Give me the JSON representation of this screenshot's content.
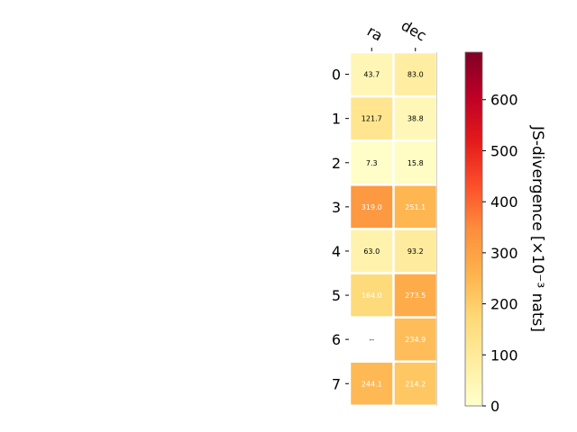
{
  "chart_data": {
    "type": "heatmap",
    "columns": [
      "ra",
      "dec"
    ],
    "rows": [
      "0",
      "1",
      "2",
      "3",
      "4",
      "5",
      "6",
      "7"
    ],
    "values": [
      [
        43.7,
        83.0
      ],
      [
        121.7,
        38.8
      ],
      [
        7.3,
        15.8
      ],
      [
        319.0,
        251.1
      ],
      [
        63.0,
        93.2
      ],
      [
        164.0,
        273.5
      ],
      [
        null,
        234.9
      ],
      [
        244.1,
        214.2
      ]
    ],
    "cell_labels": [
      [
        "43.7",
        "83.0"
      ],
      [
        "121.7",
        "38.8"
      ],
      [
        "7.3",
        "15.8"
      ],
      [
        "319.0",
        "251.1"
      ],
      [
        "63.0",
        "93.2"
      ],
      [
        "164.0",
        "273.5"
      ],
      [
        "--",
        "234.9"
      ],
      [
        "244.1",
        "214.2"
      ]
    ],
    "colorbar": {
      "label": "JS-divergence [×10⁻³ nats]",
      "min": 0,
      "max": 693,
      "ticks": [
        0,
        100,
        200,
        300,
        400,
        500,
        600
      ],
      "colormap": "YlOrRd",
      "colormap_stops": [
        "#ffffcc",
        "#ffeda0",
        "#fed976",
        "#feb24c",
        "#fd8d3c",
        "#fc4e2a",
        "#e31a1c",
        "#bd0026",
        "#800026"
      ]
    },
    "missing_label": "--",
    "grid": false
  }
}
